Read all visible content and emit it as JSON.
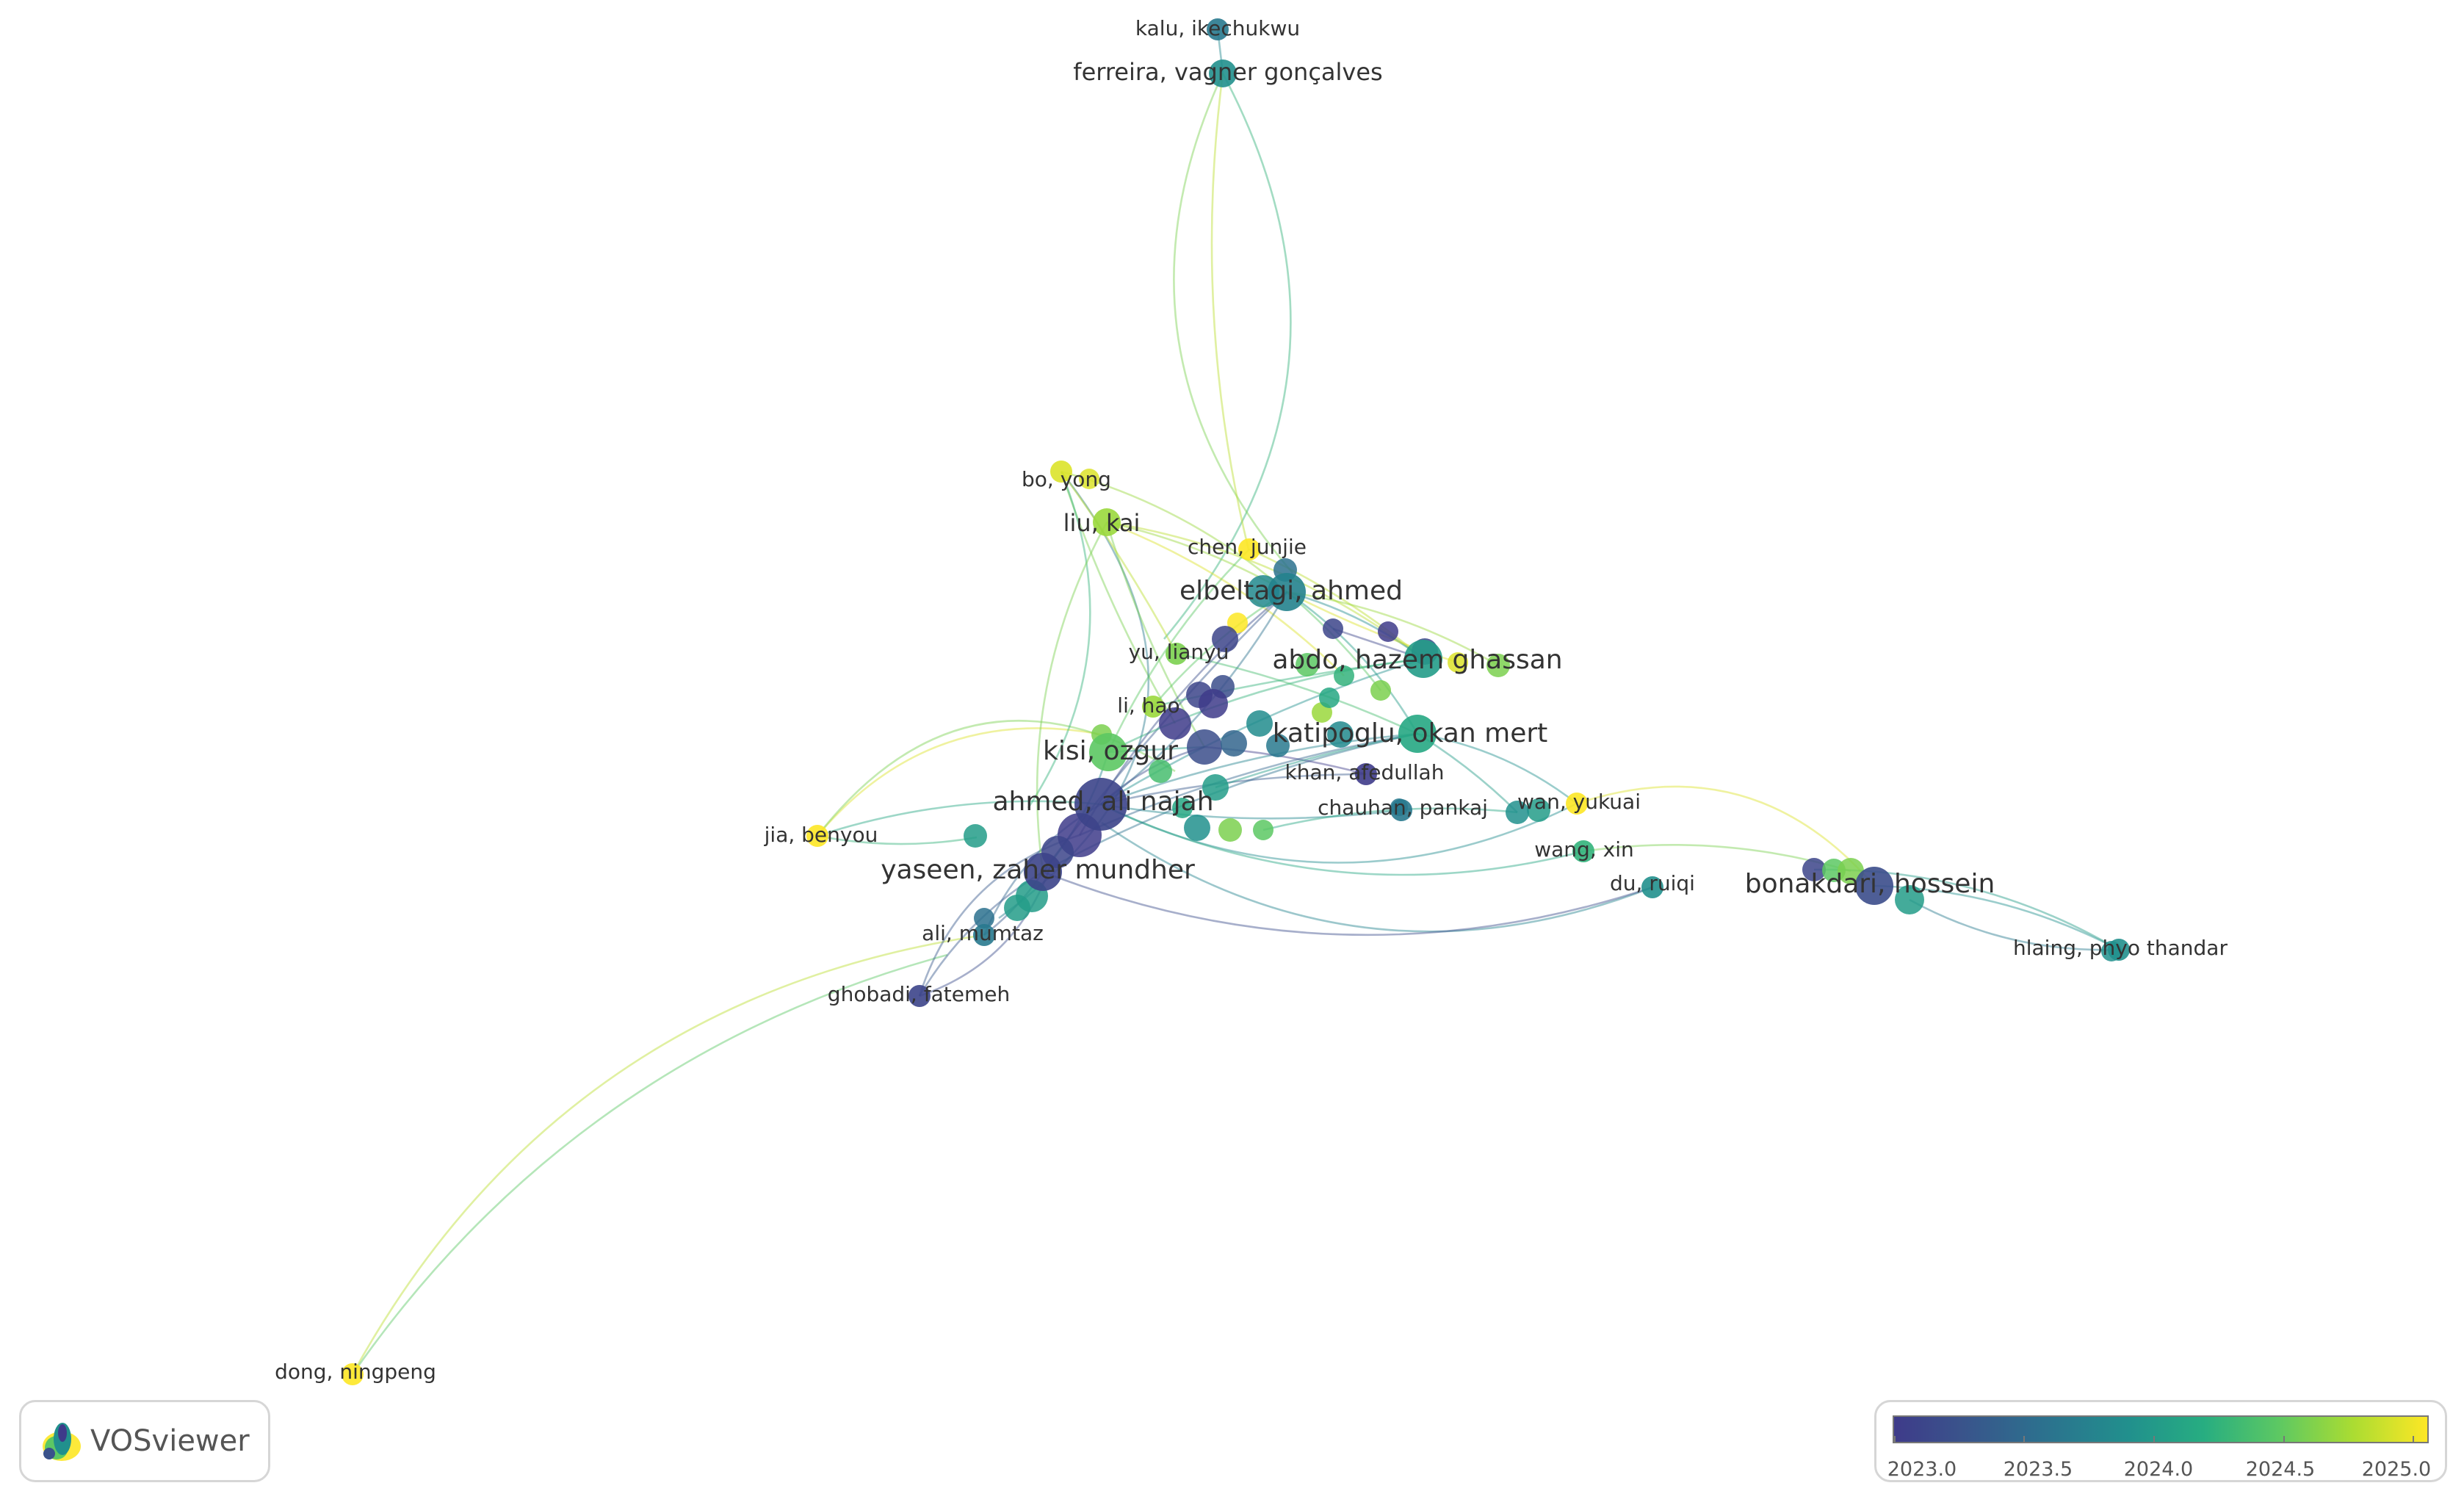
{
  "app": {
    "name": "VOSviewer"
  },
  "nodes": [
    {
      "id": "kalu",
      "label": "kalu, ikechukwu",
      "year": 2023.6,
      "size": 1
    },
    {
      "id": "ferreira",
      "label": "ferreira, vagner gonçalves",
      "year": 2024.0,
      "size": 2
    },
    {
      "id": "bo",
      "label": "bo, yong",
      "year": 2024.9,
      "size": 1
    },
    {
      "id": "liu",
      "label": "liu, kai",
      "year": 2024.7,
      "size": 2
    },
    {
      "id": "chen",
      "label": "chen, junjie",
      "year": 2025.0,
      "size": 1
    },
    {
      "id": "elbeltagi",
      "label": "elbeltagi, ahmed",
      "year": 2023.7,
      "size": 3
    },
    {
      "id": "yu",
      "label": "yu, lianyu",
      "year": 2024.6,
      "size": 1
    },
    {
      "id": "abdo",
      "label": "abdo, hazem ghassan",
      "year": 2024.1,
      "size": 3
    },
    {
      "id": "lihao",
      "label": "li, hao",
      "year": 2024.7,
      "size": 1
    },
    {
      "id": "katipoglu",
      "label": "katipoglu, okan mert",
      "year": 2024.2,
      "size": 3
    },
    {
      "id": "kisi",
      "label": "kisi, ozgur",
      "year": 2024.5,
      "size": 3
    },
    {
      "id": "khan",
      "label": "khan, afedullah",
      "year": 2023.0,
      "size": 1
    },
    {
      "id": "ahmed",
      "label": "ahmed, ali najah",
      "year": 2023.1,
      "size": 4
    },
    {
      "id": "chauhan",
      "label": "chauhan, pankaj",
      "year": 2023.6,
      "size": 1
    },
    {
      "id": "wan",
      "label": "wan, yukuai",
      "year": 2025.0,
      "size": 1
    },
    {
      "id": "jia",
      "label": "jia, benyou",
      "year": 2025.0,
      "size": 1
    },
    {
      "id": "yaseen",
      "label": "yaseen, zaher mundher",
      "year": 2023.1,
      "size": 3
    },
    {
      "id": "wang",
      "label": "wang, xin",
      "year": 2024.3,
      "size": 1
    },
    {
      "id": "du",
      "label": "du, ruiqi",
      "year": 2024.0,
      "size": 1
    },
    {
      "id": "bonakdari",
      "label": "bonakdari, hossein",
      "year": 2023.2,
      "size": 3
    },
    {
      "id": "ali",
      "label": "ali, mumtaz",
      "year": 2023.6,
      "size": 1
    },
    {
      "id": "hlaing",
      "label": "hlaing, phyo thandar",
      "year": 2024.0,
      "size": 1
    },
    {
      "id": "ghobadi",
      "label": "ghobadi, fatemeh",
      "year": 2023.1,
      "size": 1
    },
    {
      "id": "dong",
      "label": "dong, ningpeng",
      "year": 2025.0,
      "size": 1
    }
  ],
  "legend": {
    "ticks": [
      "2023.0",
      "2023.5",
      "2024.0",
      "2024.5",
      "2025.0"
    ],
    "colors": [
      "#3e3b8a",
      "#2c718e",
      "#21908d",
      "#5cc863",
      "#fde725"
    ]
  }
}
